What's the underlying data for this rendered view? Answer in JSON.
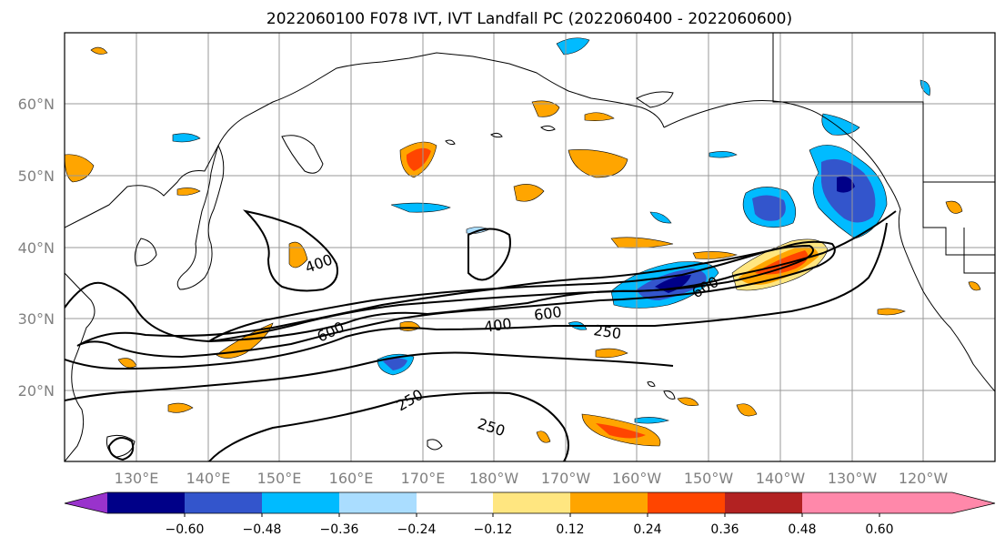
{
  "title": "2022060100 F078 IVT, IVT Landfall PC (2022060400 - 2022060600)",
  "map": {
    "lon_labels": [
      "130°E",
      "140°E",
      "150°E",
      "160°E",
      "170°E",
      "180°W",
      "170°W",
      "160°W",
      "150°W",
      "140°W",
      "130°W",
      "120°W"
    ],
    "lat_labels": [
      "60°N",
      "50°N",
      "40°N",
      "30°N",
      "20°N"
    ],
    "contour_labels": [
      "400",
      "600",
      "600",
      "400",
      "600",
      "250",
      "250",
      "250",
      "600"
    ]
  },
  "colorbar": {
    "tick_labels": [
      "−0.60",
      "−0.48",
      "−0.36",
      "−0.24",
      "−0.12",
      "0.12",
      "0.24",
      "0.36",
      "0.48",
      "0.60"
    ],
    "colors": [
      "#9933cc",
      "#000088",
      "#3355cc",
      "#00bbff",
      "#aaddff",
      "#ffffff",
      "#ffe680",
      "#ffa500",
      "#ff4500",
      "#b22222",
      "#ff88aa"
    ]
  },
  "colors": {
    "contour": "#000000",
    "grid": "#999999",
    "coast": "#000000",
    "label": "#808080"
  }
}
